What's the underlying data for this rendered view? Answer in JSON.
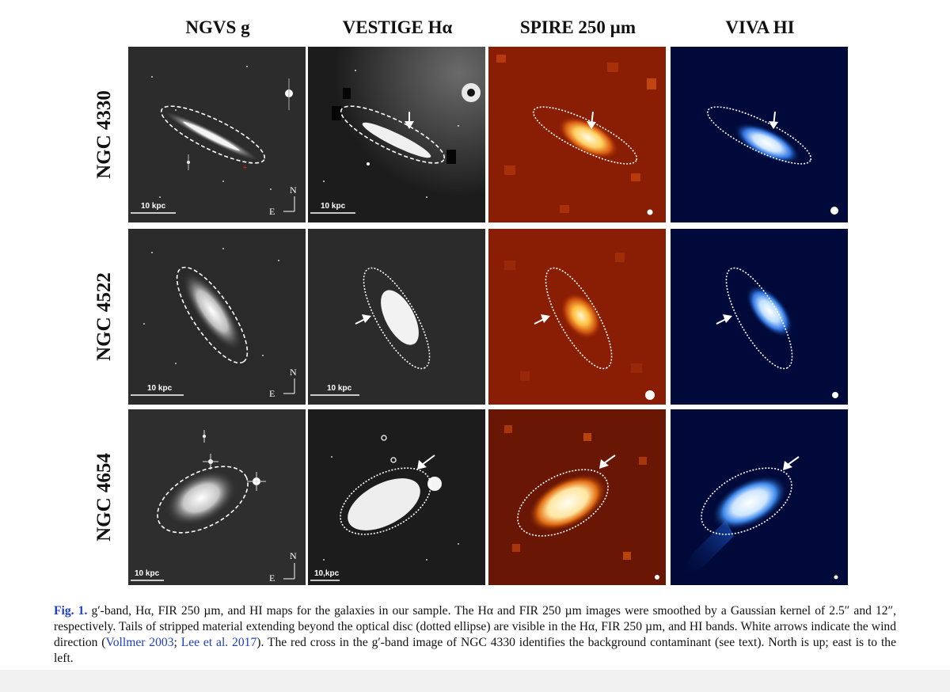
{
  "columns": [
    "NGVS g",
    "VESTIGE Hα",
    "SPIRE 250 µm",
    "VIVA HI"
  ],
  "rows": [
    "NGC 4330",
    "NGC 4522",
    "NGC 4654"
  ],
  "scale_bar_label": "10 kpc",
  "scale_bar_label_alt": "10,kpc",
  "compass": {
    "north": "N",
    "east": "E"
  },
  "caption": {
    "fig_label": "Fig. 1.",
    "text_1": " g′-band, Hα, FIR 250 µm, and HI maps for the galaxies in our sample. The Hα and FIR 250 µm images were smoothed by a Gaussian kernel of 2.5″ and 12″, respectively. Tails of stripped material extending beyond the optical disc (dotted ellipse) are visible in the Hα, FIR 250 µm, and HI bands. White arrows indicate the wind direction (",
    "ref_1": "Vollmer 2003",
    "sep": "; ",
    "ref_2": "Lee et al. 2017",
    "text_2": "). The red cross in the g′-band image of NGC 4330 identifies the background contaminant (see text). North is up; east is to the left."
  },
  "colors": {
    "caption_link": "#1c3fc4",
    "optical_bg": "#2a2a2a",
    "halpha_bg": "#1a1a1a",
    "fir_bg": "#8a1e05",
    "hi_bg": "#000a3a"
  }
}
